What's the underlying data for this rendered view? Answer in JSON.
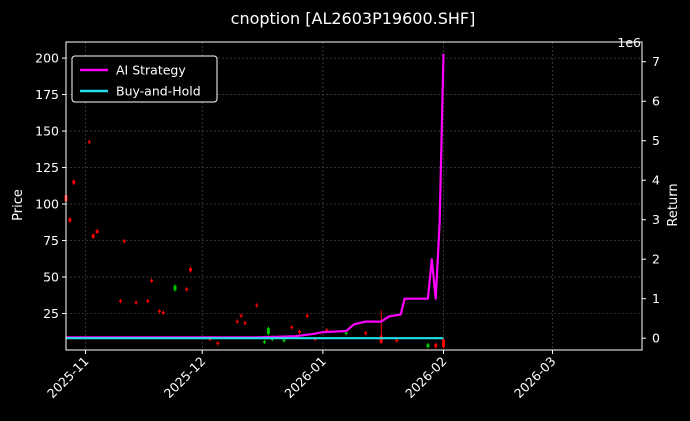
{
  "chart_data": {
    "type": "line",
    "title": "cnoption [AL2603P19600.SHF]",
    "background": "#000000",
    "grid": true,
    "left_axis": {
      "label": "Price",
      "ylim": [
        0,
        211
      ],
      "ticks": [
        25,
        50,
        75,
        100,
        125,
        150,
        175,
        200
      ],
      "tick_labels": [
        "25",
        "50",
        "75",
        "100",
        "125",
        "150",
        "175",
        "200"
      ]
    },
    "right_axis": {
      "label": "Return",
      "multiplier_label": "1e6",
      "ylim": [
        -0.3,
        7.5
      ],
      "ticks": [
        0,
        1,
        2,
        3,
        4,
        5,
        6,
        7
      ],
      "tick_labels": [
        "0",
        "1",
        "2",
        "3",
        "4",
        "5",
        "6",
        "7"
      ]
    },
    "x_axis": {
      "xlim": [
        "2025-10-27",
        "2026-03-24"
      ],
      "ticks": [
        "2025-11-01",
        "2025-12-01",
        "2026-01-01",
        "2026-02-01",
        "2026-03-01"
      ],
      "tick_labels": [
        "2025-11",
        "2025-12",
        "2026-01",
        "2026-02",
        "2026-03"
      ]
    },
    "legend": {
      "position": "top-left"
    },
    "series": [
      {
        "name": "AI Strategy",
        "axis": "right",
        "color": "#ff00ff",
        "points": [
          [
            "2025-10-27",
            0.02
          ],
          [
            "2025-12-15",
            0.02
          ],
          [
            "2025-12-25",
            0.05
          ],
          [
            "2025-12-29",
            0.1
          ],
          [
            "2026-01-01",
            0.15
          ],
          [
            "2026-01-07",
            0.18
          ],
          [
            "2026-01-09",
            0.35
          ],
          [
            "2026-01-12",
            0.42
          ],
          [
            "2026-01-16",
            0.42
          ],
          [
            "2026-01-18",
            0.55
          ],
          [
            "2026-01-21",
            0.6
          ],
          [
            "2026-01-22",
            1.0
          ],
          [
            "2026-01-28",
            1.0
          ],
          [
            "2026-01-29",
            2.0
          ],
          [
            "2026-01-30",
            1.0
          ],
          [
            "2026-01-31",
            2.9
          ],
          [
            "2026-02-01",
            7.2
          ]
        ]
      },
      {
        "name": "Buy-and-Hold",
        "axis": "right",
        "color": "#22e0e8",
        "points": [
          [
            "2025-10-27",
            0.0
          ],
          [
            "2026-02-01",
            0.0
          ]
        ]
      }
    ],
    "candles": [
      {
        "date": "2025-10-27",
        "open": 106,
        "close": 102,
        "high": 107,
        "low": 101
      },
      {
        "date": "2025-10-28",
        "open": 90,
        "close": 88,
        "high": 91,
        "low": 87
      },
      {
        "date": "2025-10-29",
        "open": 116,
        "close": 114,
        "high": 117,
        "low": 113
      },
      {
        "date": "2025-11-02",
        "open": 143,
        "close": 142,
        "high": 144,
        "low": 141
      },
      {
        "date": "2025-11-03",
        "open": 79,
        "close": 77,
        "high": 80,
        "low": 76
      },
      {
        "date": "2025-11-04",
        "open": 82,
        "close": 80,
        "high": 83,
        "low": 80
      },
      {
        "date": "2025-11-10",
        "open": 34,
        "close": 33,
        "high": 35,
        "low": 32
      },
      {
        "date": "2025-11-11",
        "open": 75,
        "close": 74,
        "high": 76,
        "low": 73
      },
      {
        "date": "2025-11-14",
        "open": 33,
        "close": 32,
        "high": 34,
        "low": 31
      },
      {
        "date": "2025-11-17",
        "open": 34,
        "close": 33,
        "high": 35,
        "low": 32
      },
      {
        "date": "2025-11-18",
        "open": 48,
        "close": 47,
        "high": 49,
        "low": 46
      },
      {
        "date": "2025-11-20",
        "open": 27,
        "close": 26,
        "high": 28,
        "low": 25
      },
      {
        "date": "2025-11-21",
        "open": 26,
        "close": 25,
        "high": 27,
        "low": 24
      },
      {
        "date": "2025-11-24",
        "open": 41,
        "close": 44,
        "high": 45,
        "low": 40
      },
      {
        "date": "2025-11-27",
        "open": 42,
        "close": 41,
        "high": 43,
        "low": 40
      },
      {
        "date": "2025-11-28",
        "open": 56,
        "close": 54,
        "high": 57,
        "low": 53
      },
      {
        "date": "2025-12-03",
        "open": 8,
        "close": 7,
        "high": 9,
        "low": 6
      },
      {
        "date": "2025-12-05",
        "open": 5,
        "close": 4,
        "high": 6,
        "low": 3
      },
      {
        "date": "2025-12-10",
        "open": 20,
        "close": 19,
        "high": 21,
        "low": 18
      },
      {
        "date": "2025-12-11",
        "open": 24,
        "close": 23,
        "high": 25,
        "low": 22
      },
      {
        "date": "2025-12-12",
        "open": 19,
        "close": 18,
        "high": 20,
        "low": 17
      },
      {
        "date": "2025-12-15",
        "open": 31,
        "close": 30,
        "high": 32,
        "low": 29
      },
      {
        "date": "2025-12-17",
        "open": 5,
        "close": 6,
        "high": 7,
        "low": 4
      },
      {
        "date": "2025-12-18",
        "open": 11,
        "close": 15,
        "high": 16,
        "low": 10
      },
      {
        "date": "2025-12-19",
        "open": 7,
        "close": 9,
        "high": 10,
        "low": 6
      },
      {
        "date": "2025-12-22",
        "open": 6,
        "close": 7,
        "high": 8,
        "low": 5
      },
      {
        "date": "2025-12-24",
        "open": 16,
        "close": 15,
        "high": 17,
        "low": 14
      },
      {
        "date": "2025-12-26",
        "open": 13,
        "close": 12,
        "high": 14,
        "low": 11
      },
      {
        "date": "2025-12-28",
        "open": 24,
        "close": 23,
        "high": 25,
        "low": 22
      },
      {
        "date": "2025-12-30",
        "open": 8,
        "close": 7,
        "high": 9,
        "low": 6
      },
      {
        "date": "2026-01-02",
        "open": 14,
        "close": 13,
        "high": 15,
        "low": 12
      },
      {
        "date": "2026-01-07",
        "open": 11,
        "close": 12,
        "high": 13,
        "low": 10
      },
      {
        "date": "2026-01-12",
        "open": 12,
        "close": 11,
        "high": 13,
        "low": 10
      },
      {
        "date": "2026-01-16",
        "open": 10,
        "close": 5,
        "high": 27,
        "low": 4
      },
      {
        "date": "2026-01-20",
        "open": 7,
        "close": 6,
        "high": 8,
        "low": 5
      },
      {
        "date": "2026-01-28",
        "open": 2,
        "close": 4,
        "high": 5,
        "low": 1
      },
      {
        "date": "2026-01-30",
        "open": 4,
        "close": 2,
        "high": 5,
        "low": 1
      },
      {
        "date": "2026-02-01",
        "open": 7,
        "close": 2,
        "high": 8,
        "low": 1
      }
    ],
    "up_color": "#00c800",
    "down_color": "#ff0000"
  }
}
